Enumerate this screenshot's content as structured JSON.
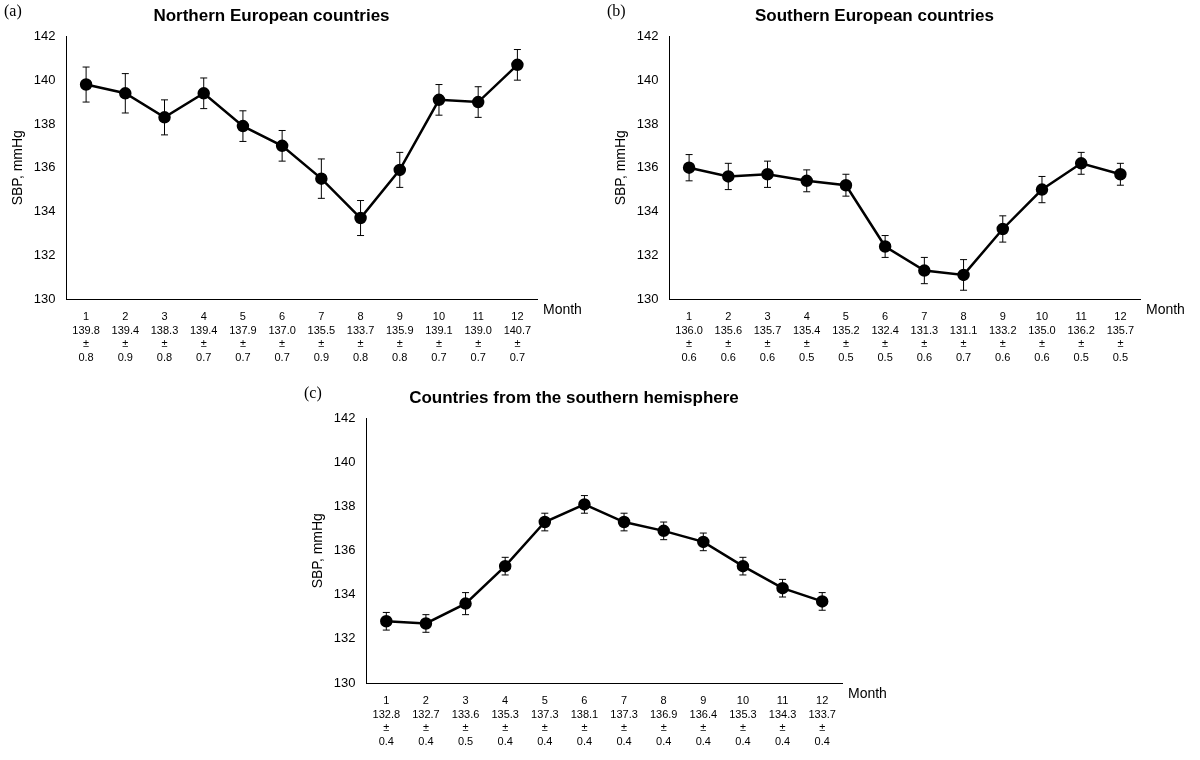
{
  "chart_data": [
    {
      "type": "line",
      "title": "Northern European countries",
      "annotations": [
        "(a)"
      ],
      "x_label": "Month",
      "y_label": "SBP, mmHg",
      "categories": [
        "1",
        "2",
        "3",
        "4",
        "5",
        "6",
        "7",
        "8",
        "9",
        "10",
        "11",
        "12"
      ],
      "values": [
        139.8,
        139.4,
        138.3,
        139.4,
        137.9,
        137.0,
        135.5,
        133.7,
        135.9,
        139.1,
        139.0,
        140.7
      ],
      "errors": [
        0.8,
        0.9,
        0.8,
        0.7,
        0.7,
        0.7,
        0.9,
        0.8,
        0.8,
        0.7,
        0.7,
        0.7
      ],
      "value_labels": [
        "139.8",
        "139.4",
        "138.3",
        "139.4",
        "137.9",
        "137.0",
        "135.5",
        "133.7",
        "135.9",
        "139.1",
        "139.0",
        "140.7"
      ],
      "error_labels": [
        "0.8",
        "0.9",
        "0.8",
        "0.7",
        "0.7",
        "0.7",
        "0.9",
        "0.8",
        "0.8",
        "0.7",
        "0.7",
        "0.7"
      ],
      "error_separator": "±",
      "color": "#000000",
      "marker": "circle",
      "line_style": "solid",
      "ylim": [
        130,
        142
      ],
      "yticks": [
        130,
        132,
        134,
        136,
        138,
        140,
        142
      ],
      "grid": false,
      "data_labels": true
    },
    {
      "type": "line",
      "title": "Southern European countries",
      "annotations": [
        "(b)"
      ],
      "x_label": "Month",
      "y_label": "SBP, mmHg",
      "categories": [
        "1",
        "2",
        "3",
        "4",
        "5",
        "6",
        "7",
        "8",
        "9",
        "10",
        "11",
        "12"
      ],
      "values": [
        136.0,
        135.6,
        135.7,
        135.4,
        135.2,
        132.4,
        131.3,
        131.1,
        133.2,
        135.0,
        136.2,
        135.7
      ],
      "errors": [
        0.6,
        0.6,
        0.6,
        0.5,
        0.5,
        0.5,
        0.6,
        0.7,
        0.6,
        0.6,
        0.5,
        0.5
      ],
      "value_labels": [
        "136.0",
        "135.6",
        "135.7",
        "135.4",
        "135.2",
        "132.4",
        "131.3",
        "131.1",
        "133.2",
        "135.0",
        "136.2",
        "135.7"
      ],
      "error_labels": [
        "0.6",
        "0.6",
        "0.6",
        "0.5",
        "0.5",
        "0.5",
        "0.6",
        "0.7",
        "0.6",
        "0.6",
        "0.5",
        "0.5"
      ],
      "error_separator": "±",
      "color": "#000000",
      "marker": "circle",
      "line_style": "solid",
      "ylim": [
        130,
        142
      ],
      "yticks": [
        130,
        132,
        134,
        136,
        138,
        140,
        142
      ],
      "grid": false,
      "data_labels": true
    },
    {
      "type": "line",
      "title": "Countries from the southern hemisphere",
      "annotations": [
        "(c)"
      ],
      "x_label": "Month",
      "y_label": "SBP, mmHg",
      "categories": [
        "1",
        "2",
        "3",
        "4",
        "5",
        "6",
        "7",
        "8",
        "9",
        "10",
        "11",
        "12"
      ],
      "values": [
        132.8,
        132.7,
        133.6,
        135.3,
        137.3,
        138.1,
        137.3,
        136.9,
        136.4,
        135.3,
        134.3,
        133.7
      ],
      "errors": [
        0.4,
        0.4,
        0.5,
        0.4,
        0.4,
        0.4,
        0.4,
        0.4,
        0.4,
        0.4,
        0.4,
        0.4
      ],
      "value_labels": [
        "132.8",
        "132.7",
        "133.6",
        "135.3",
        "137.3",
        "138.1",
        "137.3",
        "136.9",
        "136.4",
        "135.3",
        "134.3",
        "133.7"
      ],
      "error_labels": [
        "0.4",
        "0.4",
        "0.5",
        "0.4",
        "0.4",
        "0.4",
        "0.4",
        "0.4",
        "0.4",
        "0.4",
        "0.4",
        "0.4"
      ],
      "error_separator": "±",
      "color": "#000000",
      "marker": "circle",
      "line_style": "solid",
      "ylim": [
        130,
        142
      ],
      "yticks": [
        130,
        132,
        134,
        136,
        138,
        140,
        142
      ],
      "grid": false,
      "data_labels": true
    }
  ]
}
